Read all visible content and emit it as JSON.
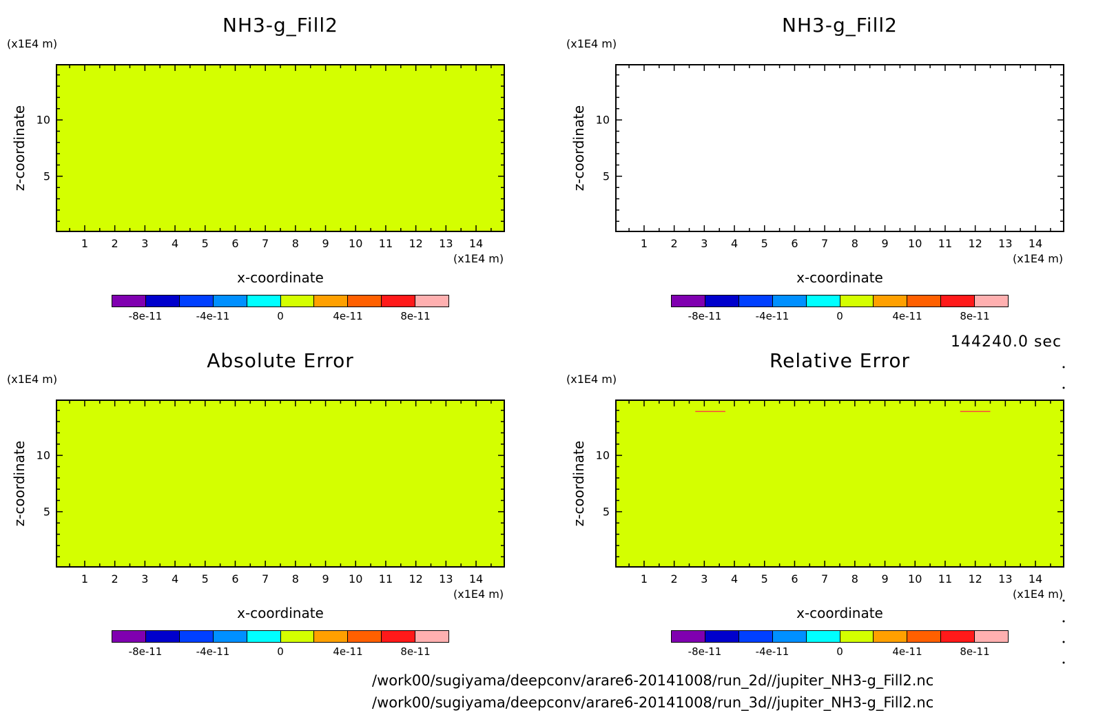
{
  "time_label": "144240.0 sec",
  "footer_lines": [
    "/work00/sugiyama/deepconv/arare6-20141008/run_2d//jupiter_NH3-g_Fill2.nc",
    "/work00/sugiyama/deepconv/arare6-20141008/run_3d//jupiter_NH3-g_Fill2.nc"
  ],
  "colors": {
    "field_fill": "#d4ff00",
    "frame": "#000000",
    "contour_line": "#ff4040"
  },
  "colorbar": {
    "colors": [
      "#8000b0",
      "#0000cc",
      "#0040ff",
      "#0090ff",
      "#00ffff",
      "#d4ff00",
      "#ffa000",
      "#ff6000",
      "#ff1a1a",
      "#ffb0b0"
    ],
    "tick_labels": [
      "-8e-11",
      "-4e-11",
      "0",
      "4e-11",
      "8e-11"
    ],
    "tick_values": [
      -8e-11,
      -4e-11,
      0,
      4e-11,
      8e-11
    ],
    "range": [
      -1e-10,
      1e-10
    ]
  },
  "chart_data": [
    {
      "type": "heatmap",
      "title": "NH3-g_Fill2",
      "xlabel": "x-coordinate",
      "ylabel": "z-coordinate",
      "x_unit": "(x1E4 m)",
      "y_unit": "(x1E4 m)",
      "xlim": [
        0.04,
        14.96
      ],
      "ylim": [
        0.04,
        14.96
      ],
      "x_ticks": [
        1,
        2,
        3,
        4,
        5,
        6,
        7,
        8,
        9,
        10,
        11,
        12,
        13,
        14
      ],
      "y_ticks": [
        5,
        10
      ],
      "filled": true,
      "field_value": 0,
      "contour_segments": []
    },
    {
      "type": "heatmap",
      "title": "NH3-g_Fill2",
      "xlabel": "x-coordinate",
      "ylabel": "z-coordinate",
      "x_unit": "(x1E4 m)",
      "y_unit": "(x1E4 m)",
      "xlim": [
        0.04,
        14.96
      ],
      "ylim": [
        0.04,
        14.96
      ],
      "x_ticks": [
        1,
        2,
        3,
        4,
        5,
        6,
        7,
        8,
        9,
        10,
        11,
        12,
        13,
        14
      ],
      "y_ticks": [
        5,
        10
      ],
      "filled": false,
      "field_value": null,
      "contour_segments": []
    },
    {
      "type": "heatmap",
      "title": "Absolute Error",
      "xlabel": "x-coordinate",
      "ylabel": "z-coordinate",
      "x_unit": "(x1E4 m)",
      "y_unit": "(x1E4 m)",
      "xlim": [
        0.04,
        14.96
      ],
      "ylim": [
        0.04,
        14.96
      ],
      "x_ticks": [
        1,
        2,
        3,
        4,
        5,
        6,
        7,
        8,
        9,
        10,
        11,
        12,
        13,
        14
      ],
      "y_ticks": [
        5,
        10
      ],
      "filled": true,
      "field_value": 0,
      "contour_segments": []
    },
    {
      "type": "heatmap",
      "title": "Relative Error",
      "xlabel": "x-coordinate",
      "ylabel": "z-coordinate",
      "x_unit": "(x1E4 m)",
      "y_unit": "(x1E4 m)",
      "xlim": [
        0.04,
        14.96
      ],
      "ylim": [
        0.04,
        14.96
      ],
      "x_ticks": [
        1,
        2,
        3,
        4,
        5,
        6,
        7,
        8,
        9,
        10,
        11,
        12,
        13,
        14
      ],
      "y_ticks": [
        5,
        10
      ],
      "filled": true,
      "field_value": 0,
      "contour_segments": [
        {
          "x": [
            2.7,
            3.7
          ],
          "z": 13.9
        },
        {
          "x": [
            11.5,
            12.5
          ],
          "z": 13.9
        }
      ]
    }
  ]
}
